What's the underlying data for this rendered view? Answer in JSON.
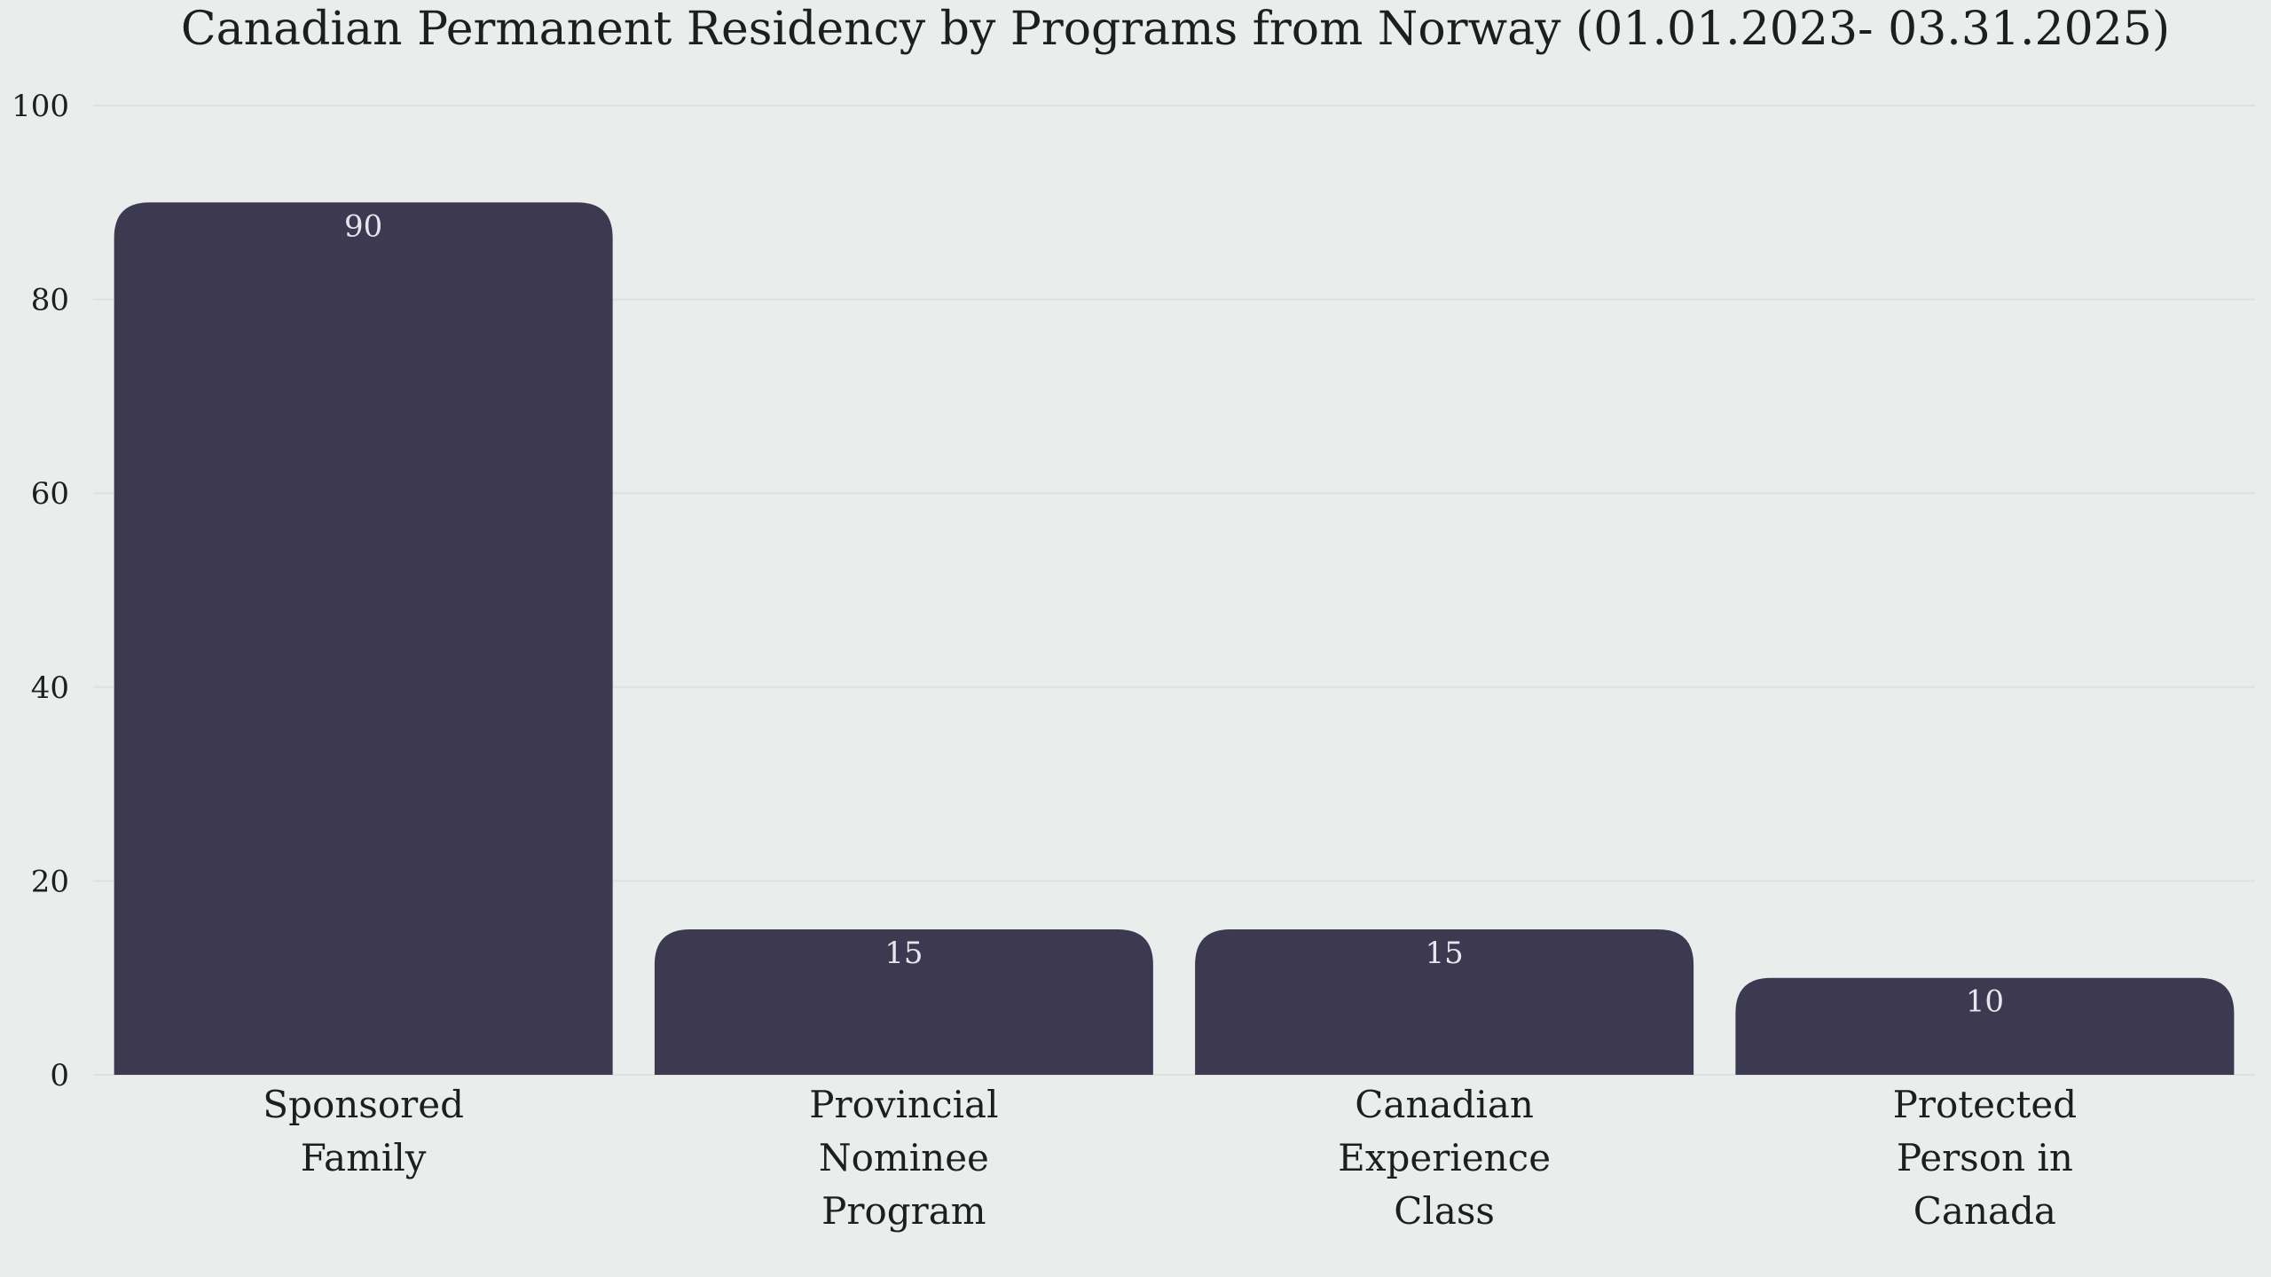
{
  "chart_data": {
    "type": "bar",
    "title": "Canadian Permanent Residency by Programs from Norway (01.01.2023- 03.31.2025)",
    "xlabel": "",
    "ylabel": "",
    "categories": [
      [
        "Sponsored",
        "Family"
      ],
      [
        "Provincial",
        "Nominee",
        "Program"
      ],
      [
        "Canadian",
        "Experience",
        "Class"
      ],
      [
        "Protected",
        "Person in",
        "Canada"
      ]
    ],
    "values": [
      90,
      15,
      15,
      10
    ],
    "data_labels": [
      "90",
      "15",
      "15",
      "10"
    ],
    "ylim": [
      0,
      100
    ],
    "yticks": [
      0,
      20,
      40,
      60,
      80,
      100
    ],
    "grid": true,
    "colors": {
      "background": "#e9eeec",
      "bar": "#3d3950",
      "grid": "#dde2e0",
      "data_label": "#e6e6ee",
      "text": "#1e1e1e"
    }
  }
}
